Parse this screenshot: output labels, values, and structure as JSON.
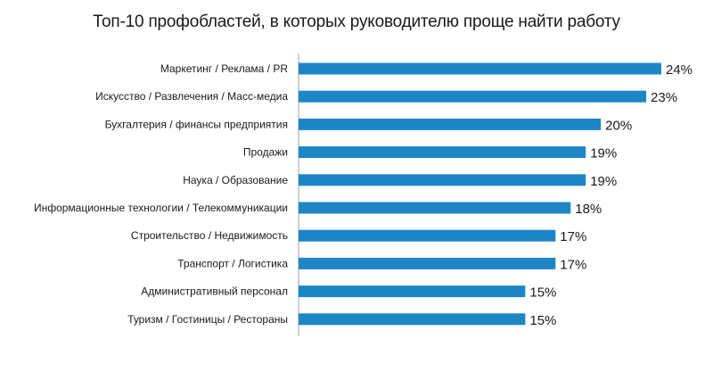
{
  "chart_data": {
    "type": "bar",
    "orientation": "horizontal",
    "title": "Топ-10 профобластей, в которых руководителю проще найти работу",
    "categories": [
      "Маркетинг / Реклама / PR",
      "Искусство / Развлечения / Масс-медиа",
      "Бухгалтерия / финансы предприятия",
      "Продажи",
      "Наука / Образование",
      "Информационные технологии / Телекоммуникации",
      "Строительство / Недвижимость",
      "Транспорт / Логистика",
      "Административный персонал",
      "Туризм / Гостиницы / Рестораны"
    ],
    "values": [
      24,
      23,
      20,
      19,
      19,
      18,
      17,
      17,
      15,
      15
    ],
    "value_labels": [
      "24%",
      "23%",
      "20%",
      "19%",
      "19%",
      "18%",
      "17%",
      "17%",
      "15%",
      "15%"
    ],
    "xlim": [
      0,
      24
    ],
    "grid": false,
    "legend": "none",
    "bar_color": "#1f86c6",
    "axis_color": "#9aa3ad"
  }
}
